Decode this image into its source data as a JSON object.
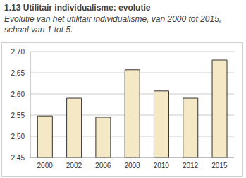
{
  "chart_data": {
    "type": "bar",
    "title": "1.13 Utilitair individualisme: evolutie",
    "subtitle": "Evolutie van het utilitair individualisme, van 2000 tot 2015, schaal van 1 tot 5.",
    "categories": [
      "2000",
      "2002",
      "2006",
      "2008",
      "2010",
      "2012",
      "2015"
    ],
    "values": [
      2.548,
      2.59,
      2.545,
      2.657,
      2.607,
      2.59,
      2.68
    ],
    "color": "#f5e8c4",
    "ylim": [
      2.45,
      2.7
    ],
    "yticks": [
      {
        "value": 2.45,
        "label": "2,45"
      },
      {
        "value": 2.5,
        "label": "2,50"
      },
      {
        "value": 2.55,
        "label": "2,55"
      },
      {
        "value": 2.6,
        "label": "2,60"
      },
      {
        "value": 2.65,
        "label": "2,65"
      },
      {
        "value": 2.7,
        "label": "2,70"
      }
    ],
    "grid": true
  }
}
